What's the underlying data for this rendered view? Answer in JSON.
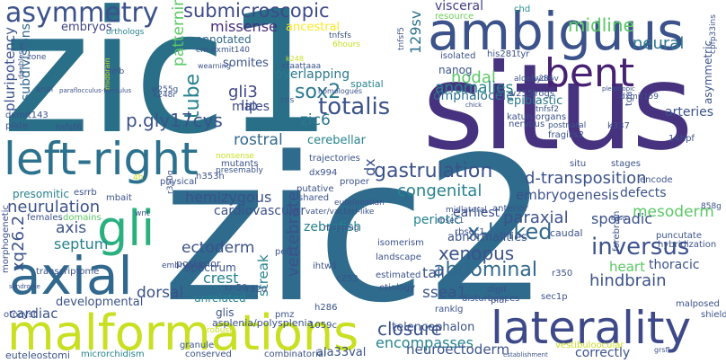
{
  "words": {
    "zic1": "zic1",
    "zic2": "zic2",
    "situs": "situs",
    "ambiguus": "ambiguus",
    "malformations": "malformations",
    "left_right": "left-right",
    "laterality": "laterality",
    "axial": "axial",
    "gli": "gli",
    "bent": "bent",
    "asymmetry": "asymmetry",
    "submicroscopic": "submicroscopic",
    "missense": "missense",
    "midline": "midline",
    "neural": "neural",
    "annotated": "annotated",
    "embryos": "embryos",
    "ancestral": "ancestral",
    "v129sv": "129sv",
    "visceral": "visceral",
    "resource": "resource",
    "chd": "chd",
    "orthologs": "orthologs",
    "tnfsf5": "tnfsf5",
    "sox2": "sox2",
    "totalis": "totalis",
    "tube": "tube",
    "zic6": "zic6",
    "gli3": "gli3",
    "lip": "lip",
    "overlapping": "overlapping",
    "nodal": "nodal",
    "nanog": "nanog",
    "anomalies": "anomalies",
    "epiblastic": "epiblastic",
    "arteries": "arteries",
    "omphalocele": "omphalocele",
    "p_gly17cys": "p.gly17cys",
    "gastrulation": "gastrulation",
    "cerebellar": "cerebellar",
    "rostral": "rostral",
    "males": "males",
    "somites": "somites",
    "spatial": "spatial",
    "patterning": "patterning",
    "pluripotency": "pluripotency",
    "subdivisions": "subdivisions",
    "d_transposition": "d-transposition",
    "defects": "defects",
    "mesoderm": "mesoderm",
    "inversus": "inversus",
    "sporadic": "sporadic",
    "embryogenesis": "embryogenesis",
    "congenital": "congenital",
    "earliest": "earliest",
    "hemizygous": "hemizygous",
    "neurulation": "neurulation",
    "xq26_2": "xq26.2",
    "axis": "axis",
    "septum": "septum",
    "ectoderm": "ectoderm",
    "cardiovascular": "cardiovascular",
    "vertebrate": "vertebrate",
    "paraxial": "paraxial",
    "x_linked": "x-linked",
    "periotic": "periotic",
    "xenopus": "xenopus",
    "abdominal": "abdominal",
    "abnormalities": "abnormalities",
    "heart": "heart",
    "thoracic": "thoracic",
    "hindbrain": "hindbrain",
    "crest": "crest",
    "ssea1": "ssea1",
    "tail": "tail",
    "dorsal": "dorsal",
    "cardiac": "cardiac",
    "closure": "closure",
    "encompasses": "encompasses",
    "telencephalon": "telencephalon",
    "neuroectoderm": "neuroectoderm",
    "correctly": "correctly",
    "zebrafish": "zebrafish",
    "glis": "glis",
    "streak": "streak",
    "developmental": "developmental",
    "dx": "dx",
    "physical": "physical",
    "presomitic": "presomitic",
    "posterior": "posterior",
    "spectrum": "spectrum",
    "unrelated": "unrelated",
    "embryonic": "embryonic",
    "transcriptome": "transcriptome",
    "females": "females",
    "domains": "domains",
    "morphogenetic": "morphogenetic",
    "otocyst": "otocyst",
    "granule": "granule",
    "euteleostomi": "euteleostomi",
    "microrchidism": "microrchidism",
    "conserved": "conserved",
    "combinatorial": "combinatorial",
    "ala33val": "ala33val",
    "asplenia": "asplenia/polysplenia",
    "robust": "robust",
    "vestibuloocular": "vestibuloocular",
    "shield": "shield",
    "malposed": "malposed",
    "hybridization": "hybridization",
    "puncutate": "puncutate",
    "caudal": "caudal",
    "forebrain": "forebrain",
    "anterior": "anterior",
    "midlateral": "midlateral",
    "euteleostian": "euteleostian",
    "encode": "encode",
    "stages": "stages",
    "situ": "situ",
    "mutants": "mutants",
    "nonsense": "nonsense",
    "presumably": "presemably",
    "trajectories": "trajectories",
    "putative": "putative",
    "proper": "proper",
    "shared": "shared",
    "mapping": "mapping",
    "isomerism": "isomerism",
    "landscape": "landscape",
    "estimated": "estimated",
    "etiology": "etiology",
    "disturbances": "disturbances",
    "digit": "digit",
    "pial": "pial",
    "sec1p": "sec1p",
    "rbsec1": "rbsec1",
    "ranklg": "ranklg",
    "pmz": "pmz",
    "pel1b": "pel1b",
    "ihtw1": "ihtw1",
    "c253": "c253",
    "cr50": "cr-50",
    "r320": "r320",
    "h286": "h286",
    "r350": "r350",
    "v1059c": "1059c",
    "vater": "vater/vacterl-like",
    "dx994": "dx994",
    "h353h": "h353h",
    "r350g": "r350g",
    "mbait": "mbait",
    "esrrb": "esrrb",
    "wnt": "wnt",
    "tnfsf6": "tnfsf6",
    "dxmit143": "dxmit143",
    "plate": "plate",
    "anal": "anal",
    "paraflocculus": "paraflocculus-flocculus",
    "mhb": "mhb",
    "w255g": "w255g",
    "k248r": "k248r",
    "cns": "cns",
    "homologues": "homologues",
    "ctaattaaa": "ctaattaaa",
    "cm_dxmit140": "cm-dxmit140",
    "wearning": "wearning",
    "k248": "k248",
    "mbsinm": "mbsinm",
    "hours": "6hours",
    "zone": "zone",
    "doublesex": "doublesex",
    "midbrain": "midbrain",
    "his281tyr": "his281tyr",
    "isolated": "isolated",
    "katun": "katun",
    "organs": "organs",
    "fragilis2": "fragilis2",
    "postnatal": "postnatal",
    "nervous": "nervous",
    "tnfsf2": "tnfsf2",
    "w255": "w255",
    "frogs": "frogs",
    "aldehyde": "aldehyde",
    "v286v": "v286v",
    "asymmetric": "asymmetric",
    "cpfp33ins": "cpfp33ins",
    "tga": "tga",
    "k337": "k337",
    "hpf14": "14hpf",
    "pleiotropic": "pleiotropic",
    "dxmit159": "dxmit159",
    "dashes": "grsfl",
    "v858g": "858g",
    "chick": "chick",
    "basis": "basis",
    "establishment": "establishment",
    "syndrome": "syndrome",
    "tnfsfs": "tnfsfs",
    "v4h": "4h",
    "rbsec": "rbsec1"
  }
}
